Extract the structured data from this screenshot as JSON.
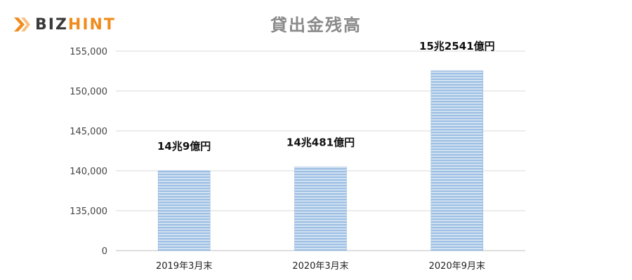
{
  "logo": {
    "text_main": "BIZ",
    "text_accent": "HINT",
    "accent_color": "#f08c1e"
  },
  "chart_data": {
    "type": "bar",
    "title": "貸出金残高",
    "xlabel": "",
    "ylabel": "",
    "categories": [
      "2019年3月末",
      "2020年3月末",
      "2020年9月末"
    ],
    "values": [
      140009,
      140481,
      152541
    ],
    "data_labels": [
      "14兆9億円",
      "14兆481億円",
      "15兆2541億円"
    ],
    "y_ticks": [
      "0",
      "135,000",
      "140,000",
      "145,000",
      "150,000",
      "155,000"
    ],
    "y_tick_values": [
      130000,
      135000,
      140000,
      145000,
      150000,
      155000
    ],
    "ylim": [
      130000,
      155000
    ],
    "axis_break": true,
    "grid": true,
    "bar_color": "#9dbfe3",
    "bar_stripe_color": "#ffffff"
  }
}
